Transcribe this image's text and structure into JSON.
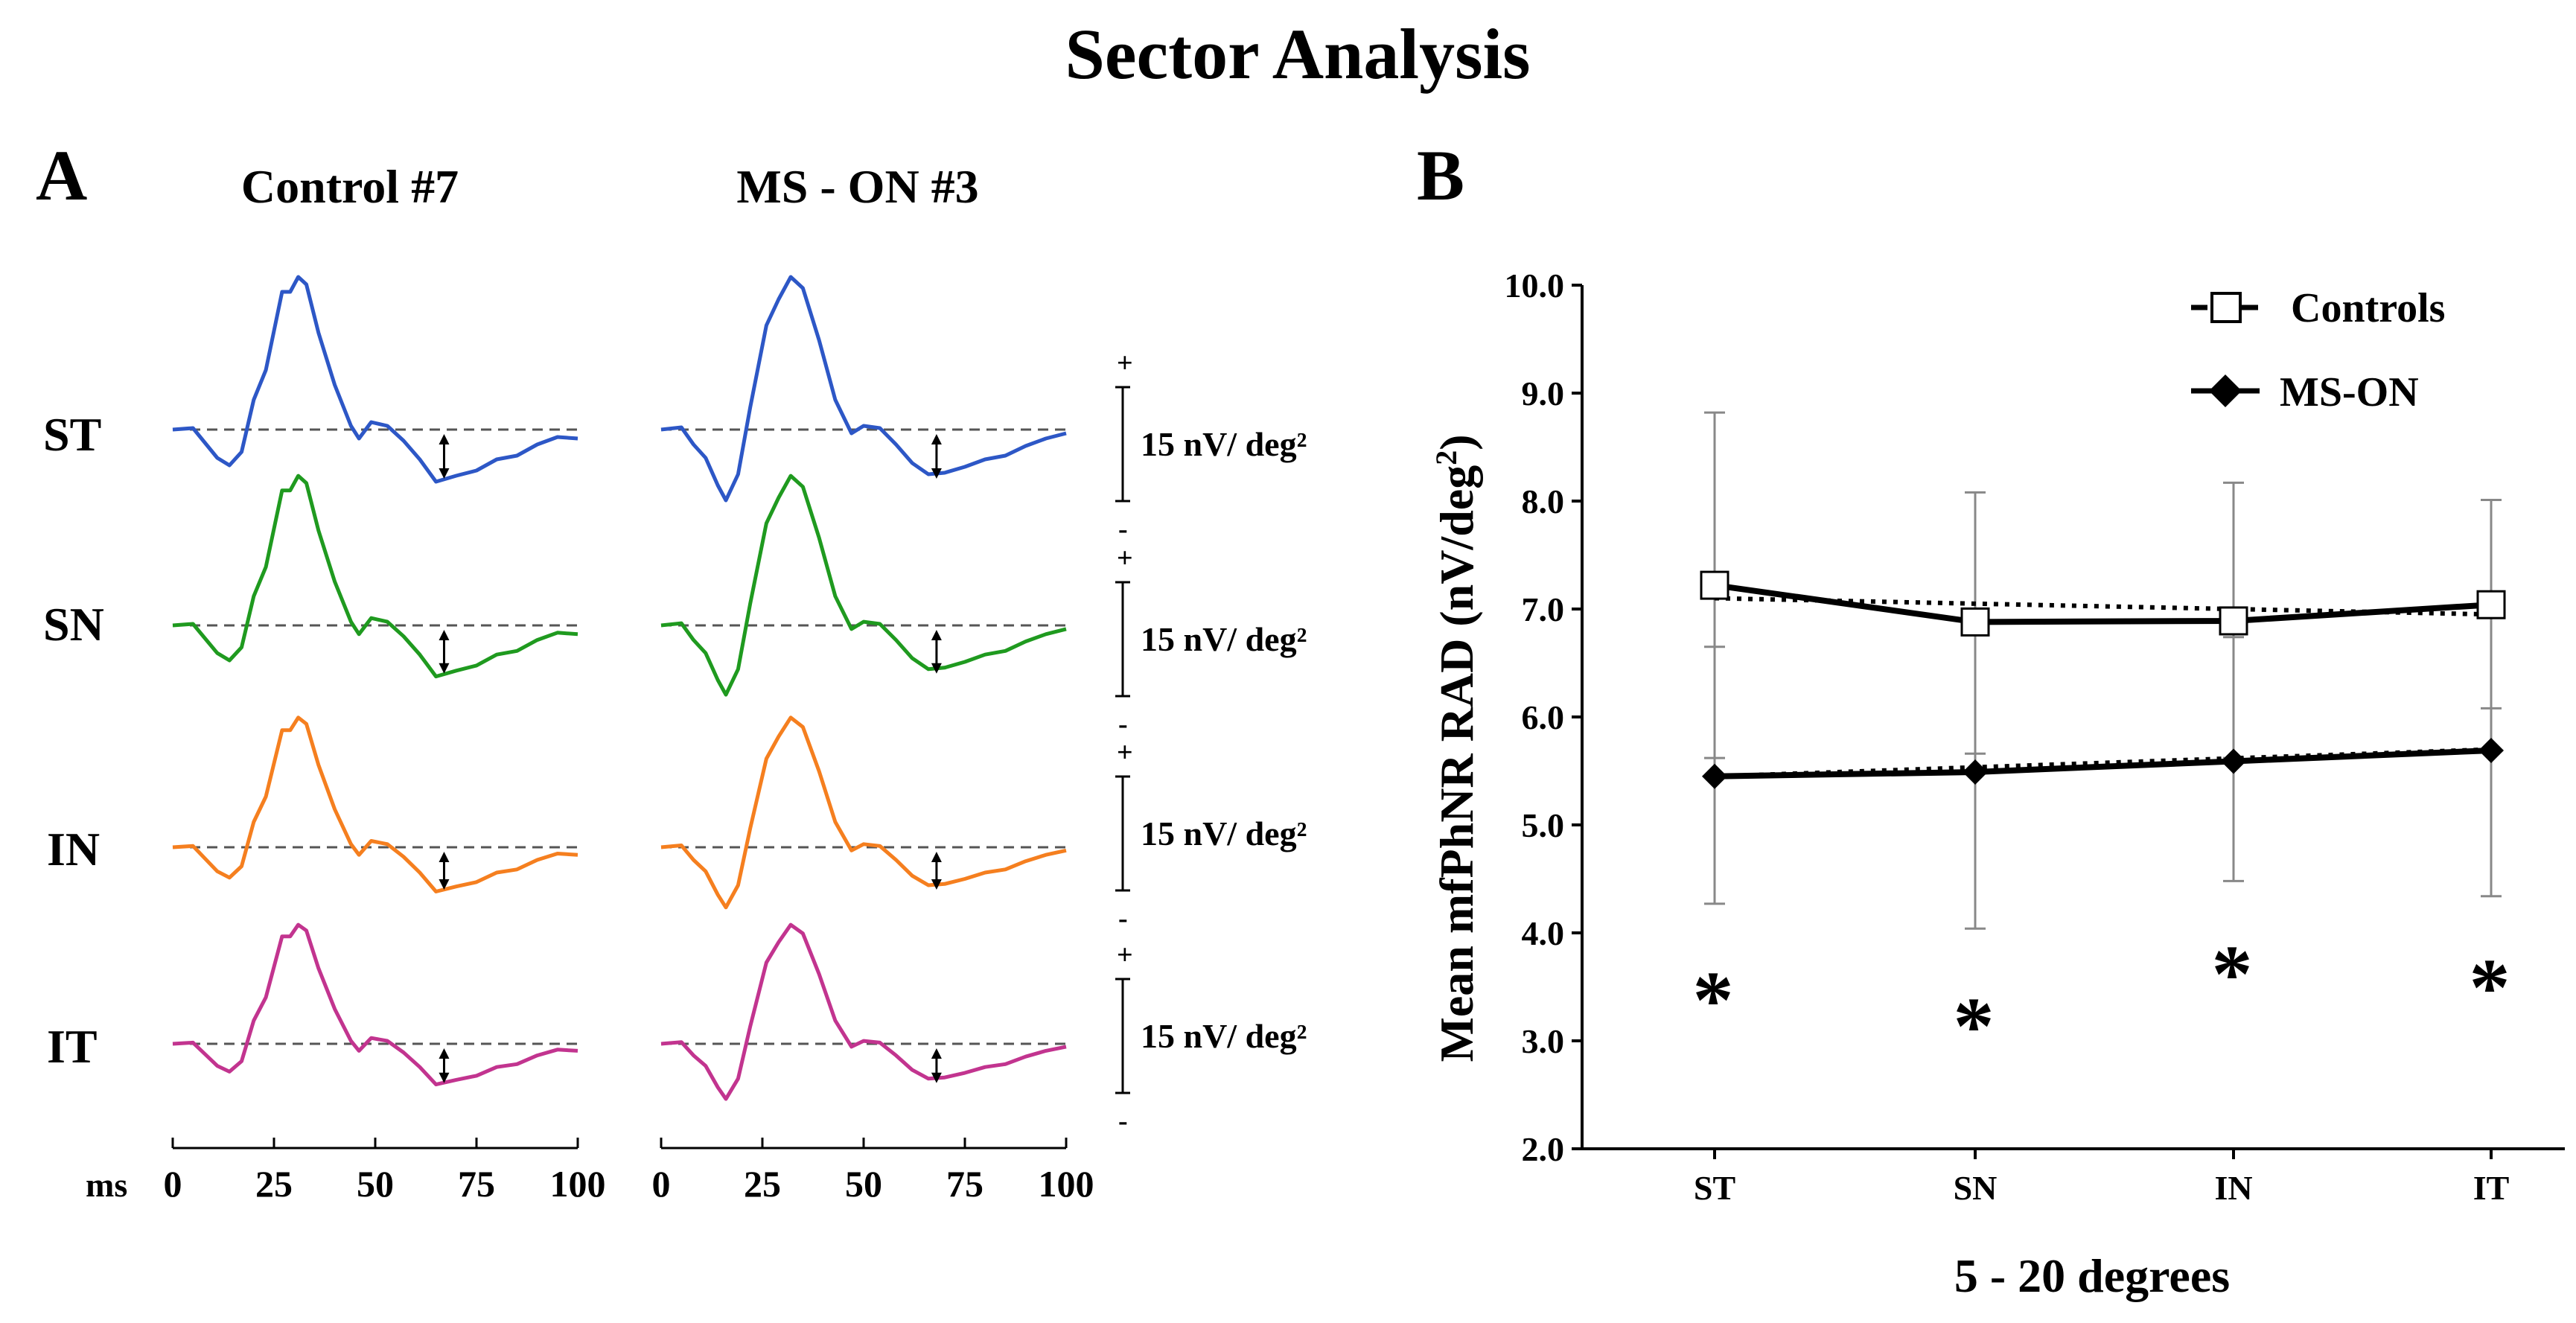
{
  "figure_title": "Sector Analysis",
  "panel_a": {
    "label": "A",
    "columns": [
      "Control #7",
      "MS - ON #3"
    ],
    "sectors": [
      {
        "name": "ST",
        "color": "#2d57c6"
      },
      {
        "name": "SN",
        "color": "#1f9a1f"
      },
      {
        "name": "IN",
        "color": "#f57f1f"
      },
      {
        "name": "IT",
        "color": "#c2348f"
      }
    ],
    "scale_bar_label": "15 nV/ deg²",
    "scale_plus": "+",
    "scale_minus": "-",
    "x_unit": "ms",
    "x_ticks": [
      "0",
      "25",
      "50",
      "75",
      "100"
    ]
  },
  "panel_b": {
    "label": "B",
    "x_title": "5 - 20 degrees",
    "asterisk": "*",
    "legend": [
      "Controls",
      "MS-ON"
    ]
  },
  "chart_data": [
    {
      "type": "line",
      "panel": "A",
      "x_range": [
        0,
        100
      ],
      "x_ticks": [
        0,
        25,
        50,
        75,
        100
      ],
      "x_unit": "ms",
      "series_by_sector": [
        "ST",
        "SN",
        "IN",
        "IT"
      ],
      "columns": [
        "Control #7",
        "MS - ON #3"
      ]
    },
    {
      "type": "line",
      "panel": "B",
      "categories": [
        "ST",
        "SN",
        "IN",
        "IT"
      ],
      "xlabel": "5 - 20 degrees",
      "ylabel": "Mean mfPhNR RAD (nV/deg²)",
      "ylim": [
        2.0,
        10.0
      ],
      "y_ticks": [
        "2.0",
        "3.0",
        "4.0",
        "5.0",
        "6.0",
        "7.0",
        "8.0",
        "9.0",
        "10.0"
      ],
      "legend_position": "top-right",
      "series": [
        {
          "name": "Controls",
          "marker": "open-square",
          "values": [
            7.22,
            6.88,
            6.89,
            7.04
          ],
          "err_upper": [
            8.82,
            8.08,
            8.17,
            8.01
          ],
          "err_lower": [
            5.62,
            5.66,
            5.62,
            6.08
          ]
        },
        {
          "name": "MS-ON",
          "marker": "filled-diamond",
          "values": [
            5.45,
            5.49,
            5.59,
            5.69
          ],
          "err_upper": [
            6.65,
            6.8,
            6.74,
            7.0
          ],
          "err_lower": [
            4.27,
            4.04,
            4.48,
            4.34
          ]
        }
      ],
      "trend_dotted": [
        [
          7.1,
          6.95
        ],
        [
          5.45,
          5.7
        ]
      ],
      "significance": [
        "*",
        "*",
        "*",
        "*"
      ]
    }
  ]
}
